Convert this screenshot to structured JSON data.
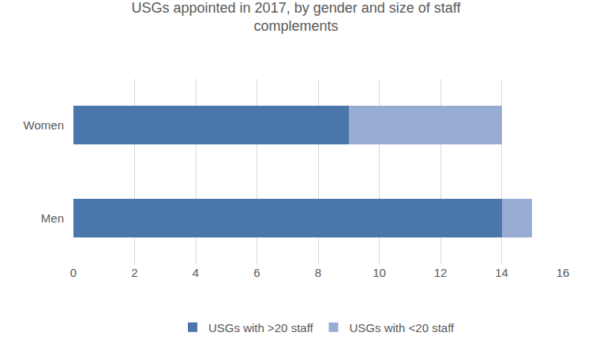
{
  "chart_data": {
    "type": "bar",
    "orientation": "horizontal",
    "stacked": true,
    "title": "USGs appointed in 2017, by gender and size of staff complements",
    "categories": [
      "Women",
      "Men"
    ],
    "series": [
      {
        "name": "USGs with >20 staff",
        "color": "#4a76aa",
        "values": [
          9,
          14
        ]
      },
      {
        "name": "USGs with <20 staff",
        "color": "#98abd3",
        "values": [
          5,
          1
        ]
      }
    ],
    "xlim": [
      0,
      16
    ],
    "xticks": [
      0,
      2,
      4,
      6,
      8,
      10,
      12,
      14,
      16
    ],
    "grid": true,
    "legend": "bottom"
  }
}
